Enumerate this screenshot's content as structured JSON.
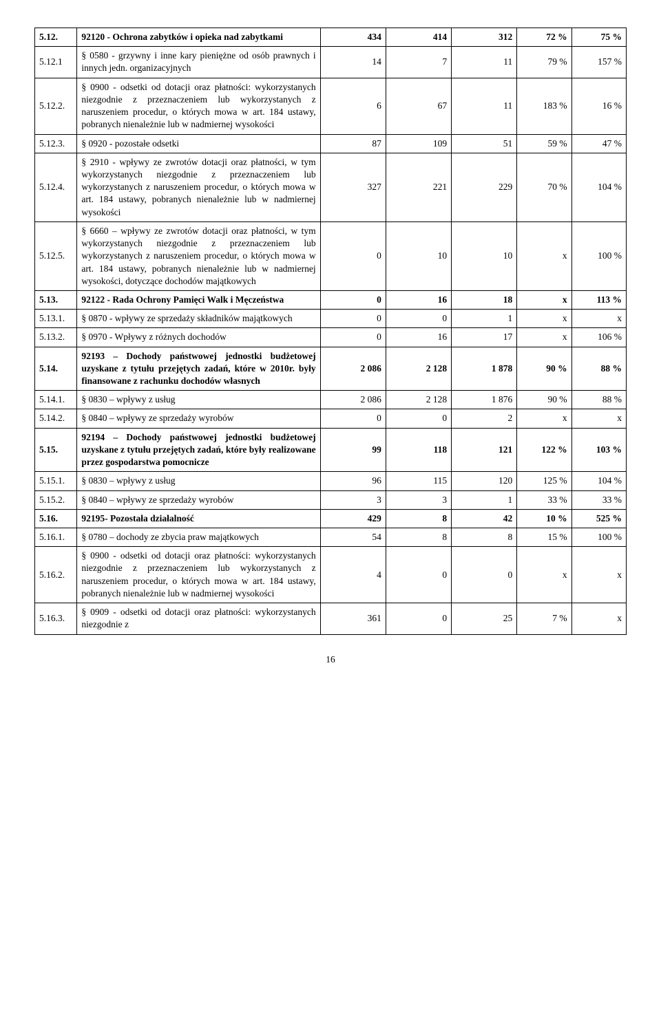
{
  "page_number": "16",
  "rows": [
    {
      "idx": "5.12.",
      "bold": true,
      "desc": "92120 - Ochrona zabytków i opieka nad zabytkami",
      "c1": "434",
      "c2": "414",
      "c3": "312",
      "c4": "72 %",
      "c5": "75 %"
    },
    {
      "idx": "5.12.1",
      "bold": false,
      "desc": "§ 0580 - grzywny i inne kary pieniężne od osób prawnych i innych jedn. organizacyjnych",
      "c1": "14",
      "c2": "7",
      "c3": "11",
      "c4": "79 %",
      "c5": "157 %"
    },
    {
      "idx": "5.12.2.",
      "bold": false,
      "desc": "§ 0900 - odsetki od dotacji oraz płatności: wykorzystanych niezgodnie z przeznaczeniem lub wykorzystanych z naruszeniem procedur, o których mowa w art. 184 ustawy, pobranych nienależnie lub w nadmiernej wysokości",
      "c1": "6",
      "c2": "67",
      "c3": "11",
      "c4": "183 %",
      "c5": "16 %"
    },
    {
      "idx": "5.12.3.",
      "bold": false,
      "desc": "§ 0920 - pozostałe odsetki",
      "c1": "87",
      "c2": "109",
      "c3": "51",
      "c4": "59 %",
      "c5": "47 %"
    },
    {
      "idx": "5.12.4.",
      "bold": false,
      "desc": "§ 2910 - wpływy ze zwrotów dotacji oraz płatności, w tym wykorzystanych niezgodnie z przeznaczeniem lub wykorzystanych z naruszeniem procedur, o których mowa w art. 184 ustawy, pobranych nienależnie lub w nadmiernej wysokości",
      "c1": "327",
      "c2": "221",
      "c3": "229",
      "c4": "70 %",
      "c5": "104  %"
    },
    {
      "idx": "5.12.5.",
      "bold": false,
      "desc": "§ 6660 – wpływy ze zwrotów dotacji oraz płatności, w tym wykorzystanych niezgodnie z przeznaczeniem lub wykorzystanych z naruszeniem procedur, o których mowa w art. 184 ustawy, pobranych nienależnie lub w nadmiernej wysokości, dotyczące dochodów majątkowych",
      "c1": "0",
      "c2": "10",
      "c3": "10",
      "c4": "x",
      "c5": "100  %"
    },
    {
      "idx": "5.13.",
      "bold": true,
      "desc": "92122 - Rada Ochrony Pamięci Walk i Męczeństwa",
      "c1": "0",
      "c2": "16",
      "c3": "18",
      "c4": "x",
      "c5": "113 %"
    },
    {
      "idx": "5.13.1.",
      "bold": false,
      "desc": "§ 0870 - wpływy ze sprzedaży składników majątkowych",
      "c1": "0",
      "c2": "0",
      "c3": "1",
      "c4": "x",
      "c5": "x"
    },
    {
      "idx": "5.13.2.",
      "bold": false,
      "desc": "§ 0970 - Wpływy z różnych dochodów",
      "c1": "0",
      "c2": "16",
      "c3": "17",
      "c4": "x",
      "c5": "106  %"
    },
    {
      "idx": "5.14.",
      "bold": true,
      "desc": "92193 – Dochody państwowej jednostki budżetowej uzyskane z tytułu przejętych zadań, które w 2010r. były finansowane z rachunku dochodów własnych",
      "c1": "2 086",
      "c2": "2 128",
      "c3": "1 878",
      "c4": "90 %",
      "c5": "88 %"
    },
    {
      "idx": "5.14.1.",
      "bold": false,
      "desc": "§ 0830 – wpływy z usług",
      "c1": "2 086",
      "c2": "2 128",
      "c3": "1 876",
      "c4": "90 %",
      "c5": "88 %"
    },
    {
      "idx": "5.14.2.",
      "bold": false,
      "desc": "§ 0840 – wpływy ze sprzedaży wyrobów",
      "c1": "0",
      "c2": "0",
      "c3": "2",
      "c4": "x",
      "c5": "x"
    },
    {
      "idx": "5.15.",
      "bold": true,
      "desc": "92194 – Dochody państwowej jednostki budżetowej uzyskane z tytułu przejętych zadań, które były realizowane przez gospodarstwa pomocnicze",
      "c1": "99",
      "c2": "118",
      "c3": "121",
      "c4": "122 %",
      "c5": "103 %"
    },
    {
      "idx": "5.15.1.",
      "bold": false,
      "desc": "§ 0830 – wpływy z usług",
      "c1": "96",
      "c2": "115",
      "c3": "120",
      "c4": "125 %",
      "c5": "104 %"
    },
    {
      "idx": "5.15.2.",
      "bold": false,
      "desc": "§ 0840 – wpływy ze sprzedaży wyrobów",
      "c1": "3",
      "c2": "3",
      "c3": "1",
      "c4": "33 %",
      "c5": "33 %"
    },
    {
      "idx": "5.16.",
      "bold": true,
      "desc": "92195- Pozostała działalność",
      "c1": "429",
      "c2": "8",
      "c3": "42",
      "c4": "10 %",
      "c5": "525 %"
    },
    {
      "idx": "5.16.1.",
      "bold": false,
      "desc": "§ 0780 – dochody ze zbycia praw majątkowych",
      "c1": "54",
      "c2": "8",
      "c3": "8",
      "c4": "15 %",
      "c5": "100 %"
    },
    {
      "idx": "5.16.2.",
      "bold": false,
      "desc": "§ 0900 - odsetki od dotacji oraz płatności: wykorzystanych niezgodnie z przeznaczeniem lub wykorzystanych z naruszeniem procedur, o których mowa w art. 184 ustawy, pobranych nienależnie lub w nadmiernej wysokości",
      "c1": "4",
      "c2": "0",
      "c3": "0",
      "c4": "x",
      "c5": "x"
    },
    {
      "idx": "5.16.3.",
      "bold": false,
      "desc": "§ 0909 - odsetki od dotacji oraz płatności: wykorzystanych niezgodnie z",
      "c1": "361",
      "c2": "0",
      "c3": "25",
      "c4": "7 %",
      "c5": "x"
    }
  ]
}
